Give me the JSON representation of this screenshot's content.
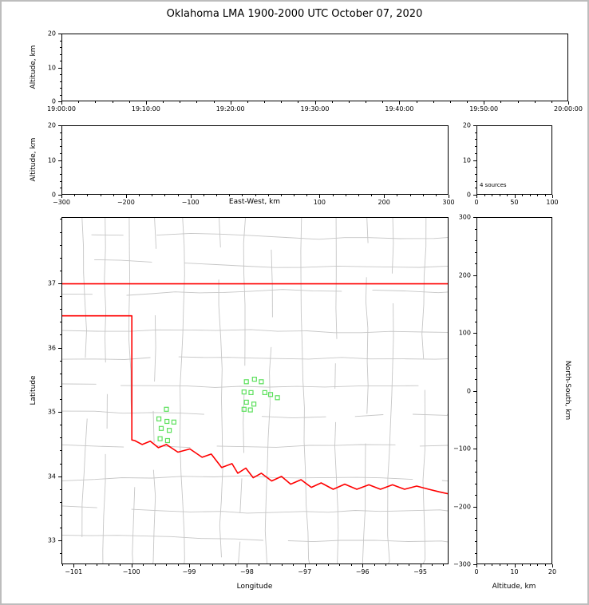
{
  "title": "Oklahoma LMA 1900-2000 UTC October 07, 2020",
  "labels": {
    "altitude_time_panel": "Altitude, km",
    "altitude_ew_panel": "Altitude, km",
    "east_west": "East-West, km",
    "latitude": "Latitude",
    "longitude": "Longitude",
    "north_south": "North-South, km",
    "altitude_ns_panel": "Altitude, km"
  },
  "annotations": {
    "source_count": "4 sources"
  },
  "colors": {
    "state_border": "#ff0000",
    "county_lines": "#c6c6c6",
    "station_marker": "#5ce05c",
    "axis": "#000000",
    "figure_border": "#bdbdbd",
    "background": "#ffffff"
  },
  "chart_data": [
    {
      "id": "time_height",
      "type": "scatter",
      "description": "VHF source altitude vs time, no sources plotted",
      "points": [],
      "x": {
        "label": "",
        "range": [
          0,
          3600
        ],
        "tick_values": [
          0,
          600,
          1200,
          1800,
          2400,
          3000,
          3600
        ],
        "tick_labels": [
          "19:00:00",
          "19:10:00",
          "19:20:00",
          "19:30:00",
          "19:40:00",
          "19:50:00",
          "20:00:00"
        ],
        "minor_step": 120
      },
      "y": {
        "label": "Altitude, km",
        "range": [
          0,
          20
        ],
        "tick_values": [
          0,
          10,
          20
        ],
        "tick_labels": [
          "0",
          "10",
          "20"
        ],
        "minor_step": 2
      }
    },
    {
      "id": "ew_height",
      "type": "scatter",
      "description": "Altitude vs east-west distance, no sources plotted",
      "points": [],
      "x": {
        "label": "East-West, km",
        "range": [
          -300,
          300
        ],
        "tick_values": [
          -300,
          -200,
          -100,
          100,
          200,
          300
        ],
        "tick_labels": [
          "−300",
          "−200",
          "−100",
          "100",
          "200",
          "300"
        ],
        "minor_step": 20
      },
      "y": {
        "label": "Altitude, km",
        "range": [
          0,
          20
        ],
        "tick_values": [
          0,
          10,
          20
        ],
        "tick_labels": [
          "0",
          "10",
          "20"
        ],
        "minor_step": 2
      }
    },
    {
      "id": "alt_histogram",
      "type": "line",
      "description": "Source count vs altitude histogram",
      "annotation": "4 sources",
      "points": [],
      "x": {
        "label": "",
        "range": [
          0,
          100
        ],
        "tick_values": [
          0,
          50,
          100
        ],
        "tick_labels": [
          "0",
          "50",
          "100"
        ],
        "minor_step": 10
      },
      "y": {
        "label": "",
        "range": [
          0,
          20
        ],
        "tick_values": [
          0,
          10,
          20
        ],
        "tick_labels": [
          "0",
          "10",
          "20"
        ],
        "minor_step": 2
      }
    },
    {
      "id": "plan_view_map",
      "type": "scatter",
      "description": "Plan view map of Oklahoma with county lines, state border and LMA stations",
      "x": {
        "label": "Longitude",
        "range": [
          -101.21,
          -94.51
        ],
        "tick_values": [
          -101,
          -100,
          -99,
          -98,
          -97,
          -96,
          -95
        ],
        "tick_labels": [
          "−101",
          "−100",
          "−99",
          "−98",
          "−97",
          "−96",
          "−95"
        ],
        "minor_step": 0.2
      },
      "y": {
        "label": "Latitude",
        "range": [
          32.63,
          38.03
        ],
        "tick_values": [
          33,
          34,
          35,
          36,
          37
        ],
        "tick_labels": [
          "33",
          "34",
          "35",
          "36",
          "37"
        ],
        "minor_step": 0.2
      },
      "stations": [
        [
          -99.4,
          35.04
        ],
        [
          -99.53,
          34.89
        ],
        [
          -99.39,
          34.85
        ],
        [
          -99.27,
          34.84
        ],
        [
          -99.49,
          34.74
        ],
        [
          -99.35,
          34.71
        ],
        [
          -99.51,
          34.58
        ],
        [
          -99.38,
          34.55
        ],
        [
          -98.01,
          35.47
        ],
        [
          -97.87,
          35.51
        ],
        [
          -97.75,
          35.47
        ],
        [
          -98.05,
          35.31
        ],
        [
          -97.93,
          35.3
        ],
        [
          -97.69,
          35.3
        ],
        [
          -97.59,
          35.27
        ],
        [
          -97.47,
          35.22
        ],
        [
          -98.01,
          35.15
        ],
        [
          -97.88,
          35.12
        ],
        [
          -98.05,
          35.04
        ],
        [
          -97.94,
          35.03
        ]
      ],
      "state_border": [
        [
          [
            -101.21,
            37.0
          ],
          [
            -94.51,
            37.0
          ]
        ],
        [
          [
            -101.21,
            36.5
          ],
          [
            -100.0,
            36.5
          ],
          [
            -100.0,
            34.56
          ],
          [
            -99.95,
            34.55
          ],
          [
            -99.82,
            34.49
          ],
          [
            -99.68,
            34.54
          ],
          [
            -99.54,
            34.44
          ],
          [
            -99.4,
            34.49
          ],
          [
            -99.2,
            34.37
          ],
          [
            -98.99,
            34.42
          ],
          [
            -98.78,
            34.29
          ],
          [
            -98.62,
            34.34
          ],
          [
            -98.44,
            34.13
          ],
          [
            -98.26,
            34.19
          ],
          [
            -98.16,
            34.04
          ],
          [
            -98.02,
            34.12
          ],
          [
            -97.89,
            33.97
          ],
          [
            -97.75,
            34.04
          ],
          [
            -97.57,
            33.92
          ],
          [
            -97.4,
            33.99
          ],
          [
            -97.24,
            33.87
          ],
          [
            -97.06,
            33.94
          ],
          [
            -96.88,
            33.82
          ],
          [
            -96.71,
            33.89
          ],
          [
            -96.5,
            33.79
          ],
          [
            -96.3,
            33.87
          ],
          [
            -96.09,
            33.79
          ],
          [
            -95.88,
            33.86
          ],
          [
            -95.68,
            33.79
          ],
          [
            -95.47,
            33.86
          ],
          [
            -95.26,
            33.79
          ],
          [
            -95.05,
            33.84
          ],
          [
            -94.84,
            33.79
          ],
          [
            -94.66,
            33.75
          ],
          [
            -94.51,
            33.72
          ]
        ]
      ]
    },
    {
      "id": "ns_height",
      "type": "scatter",
      "description": "North-south distance vs altitude, no sources plotted",
      "points": [],
      "x": {
        "label": "Altitude, km",
        "range": [
          0,
          20
        ],
        "tick_values": [
          0,
          10,
          20
        ],
        "tick_labels": [
          "0",
          "10",
          "20"
        ],
        "minor_step": 2
      },
      "y": {
        "label": "North-South, km",
        "range": [
          -300,
          300
        ],
        "tick_values": [
          -300,
          -200,
          -100,
          0,
          100,
          200,
          300
        ],
        "tick_labels": [
          "−300",
          "−200",
          "−100",
          "0",
          "100",
          "200",
          "300"
        ],
        "minor_step": 20
      }
    }
  ]
}
